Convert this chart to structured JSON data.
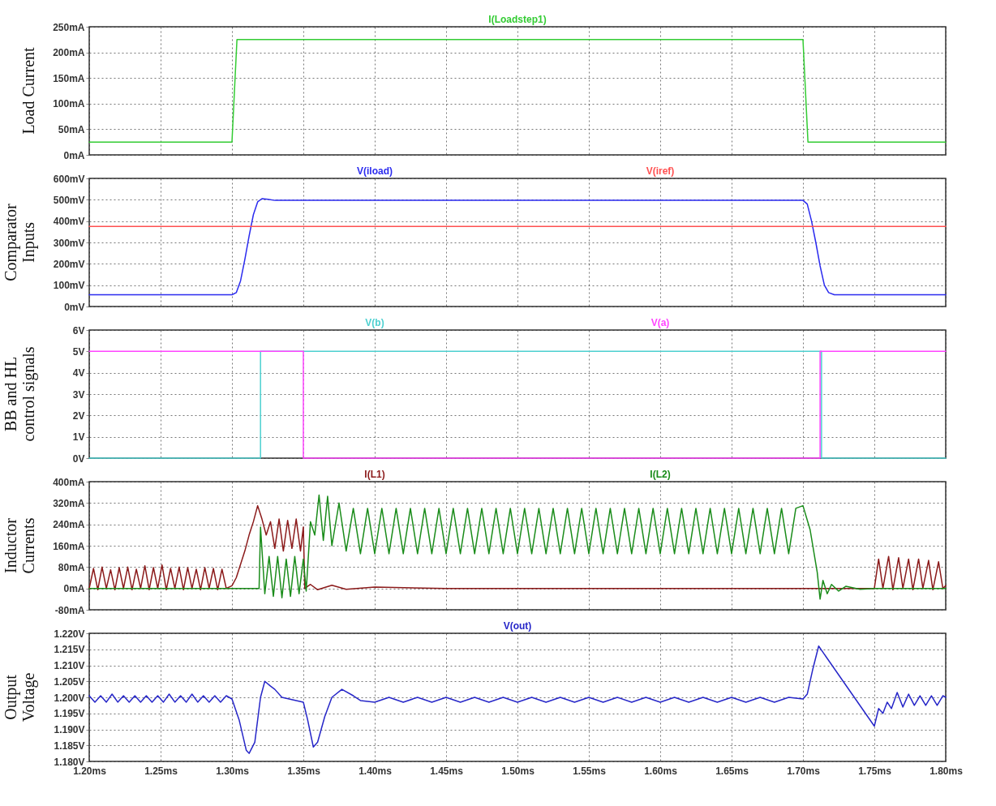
{
  "chart_data": [
    {
      "type": "line",
      "ylabel": "Load Current",
      "xlim": [
        1.2,
        1.8
      ],
      "xticks": [
        {
          "value": 1.2,
          "label": null
        },
        {
          "value": 1.25,
          "label": null
        },
        {
          "value": 1.3,
          "label": null
        },
        {
          "value": 1.35,
          "label": null
        },
        {
          "value": 1.4,
          "label": null
        },
        {
          "value": 1.45,
          "label": null
        },
        {
          "value": 1.5,
          "label": null
        },
        {
          "value": 1.55,
          "label": null
        },
        {
          "value": 1.6,
          "label": null
        },
        {
          "value": 1.65,
          "label": null
        },
        {
          "value": 1.7,
          "label": null
        },
        {
          "value": 1.75,
          "label": null
        },
        {
          "value": 1.8,
          "label": null
        }
      ],
      "ylim": [
        0,
        250
      ],
      "yticks": [
        {
          "value": 0,
          "label": "0mA"
        },
        {
          "value": 50,
          "label": "50mA"
        },
        {
          "value": 100,
          "label": "100mA"
        },
        {
          "value": 150,
          "label": "150mA"
        },
        {
          "value": 200,
          "label": "200mA"
        },
        {
          "value": 250,
          "label": "250mA"
        }
      ],
      "grid": true,
      "tick_labels": "y",
      "series": [
        {
          "name": "I(Loadstep1)",
          "color": "#33cc33",
          "x": [
            1.2,
            1.3,
            1.3035,
            1.7,
            1.7035,
            1.8
          ],
          "values": [
            25,
            25,
            225,
            225,
            25,
            25
          ]
        }
      ]
    },
    {
      "type": "line",
      "ylabel": "Comparator\nInputs",
      "xlim": [
        1.2,
        1.8
      ],
      "xticks": [
        {
          "value": 1.2,
          "label": null
        },
        {
          "value": 1.25,
          "label": null
        },
        {
          "value": 1.3,
          "label": null
        },
        {
          "value": 1.35,
          "label": null
        },
        {
          "value": 1.4,
          "label": null
        },
        {
          "value": 1.45,
          "label": null
        },
        {
          "value": 1.5,
          "label": null
        },
        {
          "value": 1.55,
          "label": null
        },
        {
          "value": 1.6,
          "label": null
        },
        {
          "value": 1.65,
          "label": null
        },
        {
          "value": 1.7,
          "label": null
        },
        {
          "value": 1.75,
          "label": null
        },
        {
          "value": 1.8,
          "label": null
        }
      ],
      "ylim": [
        0,
        600
      ],
      "yticks": [
        {
          "value": 0,
          "label": "0mV"
        },
        {
          "value": 100,
          "label": "100mV"
        },
        {
          "value": 200,
          "label": "200mV"
        },
        {
          "value": 300,
          "label": "300mV"
        },
        {
          "value": 400,
          "label": "400mV"
        },
        {
          "value": 500,
          "label": "500mV"
        },
        {
          "value": 600,
          "label": "600mV"
        }
      ],
      "grid": true,
      "tick_labels": "y",
      "series": [
        {
          "name": "V(iload)",
          "color": "#2b2bef",
          "x": [
            1.2,
            1.3,
            1.303,
            1.306,
            1.309,
            1.312,
            1.315,
            1.318,
            1.321,
            1.325,
            1.33,
            1.7,
            1.703,
            1.706,
            1.709,
            1.712,
            1.715,
            1.718,
            1.722,
            1.8
          ],
          "values": [
            55,
            55,
            65,
            120,
            220,
            330,
            430,
            490,
            505,
            502,
            497,
            497,
            480,
            400,
            300,
            190,
            100,
            65,
            55,
            55
          ]
        },
        {
          "name": "V(iref)",
          "color": "#ff5050",
          "x": [
            1.2,
            1.8
          ],
          "values": [
            375,
            375
          ]
        }
      ]
    },
    {
      "type": "line",
      "ylabel": "BB and HL\ncontrol signals",
      "xlim": [
        1.2,
        1.8
      ],
      "xticks": [
        {
          "value": 1.2,
          "label": null
        },
        {
          "value": 1.25,
          "label": null
        },
        {
          "value": 1.3,
          "label": null
        },
        {
          "value": 1.35,
          "label": null
        },
        {
          "value": 1.4,
          "label": null
        },
        {
          "value": 1.45,
          "label": null
        },
        {
          "value": 1.5,
          "label": null
        },
        {
          "value": 1.55,
          "label": null
        },
        {
          "value": 1.6,
          "label": null
        },
        {
          "value": 1.65,
          "label": null
        },
        {
          "value": 1.7,
          "label": null
        },
        {
          "value": 1.75,
          "label": null
        },
        {
          "value": 1.8,
          "label": null
        }
      ],
      "ylim": [
        0,
        6
      ],
      "yticks": [
        {
          "value": 0,
          "label": "0V"
        },
        {
          "value": 1,
          "label": "1V"
        },
        {
          "value": 2,
          "label": "2V"
        },
        {
          "value": 3,
          "label": "3V"
        },
        {
          "value": 4,
          "label": "4V"
        },
        {
          "value": 5,
          "label": "5V"
        },
        {
          "value": 6,
          "label": "6V"
        }
      ],
      "grid": true,
      "tick_labels": "y",
      "series": [
        {
          "name": "V(b)",
          "color": "#4dd0d0",
          "x": [
            1.2,
            1.32,
            1.32,
            1.713,
            1.713,
            1.8
          ],
          "values": [
            0,
            0,
            5,
            5,
            0,
            0
          ]
        },
        {
          "name": "V(a)",
          "color": "#ff44ff",
          "x": [
            1.2,
            1.35,
            1.35,
            1.712,
            1.712,
            1.8
          ],
          "values": [
            5,
            5,
            0,
            0,
            5,
            5
          ]
        }
      ]
    },
    {
      "type": "line",
      "ylabel": "Inductor\nCurrents",
      "xlim": [
        1.2,
        1.8
      ],
      "xticks": [
        {
          "value": 1.2,
          "label": null
        },
        {
          "value": 1.25,
          "label": null
        },
        {
          "value": 1.3,
          "label": null
        },
        {
          "value": 1.35,
          "label": null
        },
        {
          "value": 1.4,
          "label": null
        },
        {
          "value": 1.45,
          "label": null
        },
        {
          "value": 1.5,
          "label": null
        },
        {
          "value": 1.55,
          "label": null
        },
        {
          "value": 1.6,
          "label": null
        },
        {
          "value": 1.65,
          "label": null
        },
        {
          "value": 1.7,
          "label": null
        },
        {
          "value": 1.75,
          "label": null
        },
        {
          "value": 1.8,
          "label": null
        }
      ],
      "ylim": [
        -80,
        400
      ],
      "yticks": [
        {
          "value": -80,
          "label": "-80mA"
        },
        {
          "value": 0,
          "label": "0mA"
        },
        {
          "value": 80,
          "label": "80mA"
        },
        {
          "value": 160,
          "label": "160mA"
        },
        {
          "value": 240,
          "label": "240mA"
        },
        {
          "value": 320,
          "label": "320mA"
        },
        {
          "value": 400,
          "label": "400mA"
        }
      ],
      "grid": true,
      "tick_labels": "y",
      "series": [
        {
          "name": "I(L1)",
          "color": "#8b1a1a",
          "x": [
            1.2,
            1.203,
            1.206,
            1.209,
            1.212,
            1.215,
            1.218,
            1.221,
            1.224,
            1.227,
            1.23,
            1.233,
            1.236,
            1.239,
            1.242,
            1.245,
            1.248,
            1.251,
            1.254,
            1.257,
            1.26,
            1.263,
            1.266,
            1.269,
            1.272,
            1.275,
            1.278,
            1.281,
            1.284,
            1.287,
            1.29,
            1.293,
            1.296,
            1.3,
            1.303,
            1.306,
            1.309,
            1.312,
            1.315,
            1.318,
            1.321,
            1.324,
            1.327,
            1.33,
            1.333,
            1.336,
            1.339,
            1.342,
            1.345,
            1.348,
            1.35,
            1.351,
            1.355,
            1.36,
            1.37,
            1.38,
            1.4,
            1.45,
            1.75,
            1.753,
            1.756,
            1.76,
            1.763,
            1.767,
            1.77,
            1.774,
            1.777,
            1.781,
            1.784,
            1.788,
            1.791,
            1.795,
            1.798,
            1.8
          ],
          "values": [
            0,
            75,
            -5,
            80,
            0,
            70,
            -5,
            78,
            0,
            80,
            -5,
            72,
            0,
            85,
            -5,
            78,
            0,
            88,
            -5,
            75,
            0,
            80,
            -5,
            78,
            0,
            72,
            -5,
            78,
            0,
            75,
            -5,
            72,
            0,
            10,
            40,
            90,
            140,
            200,
            250,
            310,
            260,
            200,
            250,
            150,
            260,
            140,
            255,
            150,
            260,
            140,
            230,
            0,
            15,
            -5,
            12,
            -3,
            5,
            0,
            0,
            110,
            0,
            120,
            -5,
            115,
            0,
            110,
            -5,
            110,
            0,
            105,
            -5,
            100,
            0,
            10
          ]
        },
        {
          "name": "I(L2)",
          "color": "#1a8c1a",
          "x": [
            1.2,
            1.319,
            1.32,
            1.323,
            1.326,
            1.329,
            1.332,
            1.335,
            1.338,
            1.341,
            1.344,
            1.347,
            1.35,
            1.352,
            1.355,
            1.358,
            1.361,
            1.364,
            1.367,
            1.37,
            1.375,
            1.38,
            1.385,
            1.39,
            1.395,
            1.4,
            1.405,
            1.41,
            1.415,
            1.42,
            1.425,
            1.43,
            1.435,
            1.44,
            1.445,
            1.45,
            1.455,
            1.46,
            1.465,
            1.47,
            1.475,
            1.48,
            1.485,
            1.49,
            1.495,
            1.5,
            1.505,
            1.51,
            1.515,
            1.52,
            1.525,
            1.53,
            1.535,
            1.54,
            1.545,
            1.55,
            1.555,
            1.56,
            1.565,
            1.57,
            1.575,
            1.58,
            1.585,
            1.59,
            1.595,
            1.6,
            1.605,
            1.61,
            1.615,
            1.62,
            1.625,
            1.63,
            1.635,
            1.64,
            1.645,
            1.65,
            1.655,
            1.66,
            1.665,
            1.67,
            1.675,
            1.68,
            1.685,
            1.69,
            1.695,
            1.7,
            1.705,
            1.71,
            1.712,
            1.714,
            1.717,
            1.72,
            1.725,
            1.73,
            1.74,
            1.75,
            1.8
          ],
          "values": [
            0,
            0,
            230,
            -20,
            120,
            -30,
            120,
            -35,
            110,
            -30,
            120,
            -20,
            110,
            -10,
            250,
            200,
            350,
            180,
            345,
            160,
            320,
            140,
            300,
            130,
            300,
            130,
            300,
            130,
            300,
            130,
            300,
            130,
            300,
            130,
            300,
            130,
            300,
            130,
            300,
            130,
            300,
            130,
            300,
            130,
            300,
            130,
            300,
            130,
            300,
            130,
            300,
            130,
            300,
            130,
            300,
            130,
            300,
            130,
            300,
            130,
            300,
            130,
            300,
            130,
            300,
            130,
            300,
            130,
            300,
            130,
            300,
            130,
            300,
            130,
            300,
            130,
            300,
            130,
            300,
            130,
            300,
            130,
            300,
            130,
            300,
            310,
            220,
            60,
            -40,
            30,
            -20,
            15,
            -10,
            8,
            -3,
            0,
            0
          ]
        }
      ]
    },
    {
      "type": "line",
      "ylabel": "Output\nVoltage",
      "xlim": [
        1.2,
        1.8
      ],
      "xticks": [
        {
          "value": 1.2,
          "label": "1.20ms"
        },
        {
          "value": 1.25,
          "label": "1.25ms"
        },
        {
          "value": 1.3,
          "label": "1.30ms"
        },
        {
          "value": 1.35,
          "label": "1.35ms"
        },
        {
          "value": 1.4,
          "label": "1.40ms"
        },
        {
          "value": 1.45,
          "label": "1.45ms"
        },
        {
          "value": 1.5,
          "label": "1.50ms"
        },
        {
          "value": 1.55,
          "label": "1.55ms"
        },
        {
          "value": 1.6,
          "label": "1.60ms"
        },
        {
          "value": 1.65,
          "label": "1.65ms"
        },
        {
          "value": 1.7,
          "label": "1.70ms"
        },
        {
          "value": 1.75,
          "label": "1.75ms"
        },
        {
          "value": 1.8,
          "label": "1.80ms"
        }
      ],
      "ylim": [
        1.18,
        1.22
      ],
      "yticks": [
        {
          "value": 1.18,
          "label": "1.180V"
        },
        {
          "value": 1.185,
          "label": "1.185V"
        },
        {
          "value": 1.19,
          "label": "1.190V"
        },
        {
          "value": 1.195,
          "label": "1.195V"
        },
        {
          "value": 1.2,
          "label": "1.200V"
        },
        {
          "value": 1.205,
          "label": "1.205V"
        },
        {
          "value": 1.21,
          "label": "1.210V"
        },
        {
          "value": 1.215,
          "label": "1.215V"
        },
        {
          "value": 1.22,
          "label": "1.220V"
        }
      ],
      "grid": true,
      "series": [
        {
          "name": "V(out)",
          "color": "#2626c8",
          "x": [
            1.2,
            1.204,
            1.208,
            1.212,
            1.216,
            1.22,
            1.224,
            1.228,
            1.232,
            1.236,
            1.24,
            1.244,
            1.248,
            1.252,
            1.256,
            1.26,
            1.264,
            1.268,
            1.272,
            1.276,
            1.28,
            1.284,
            1.288,
            1.292,
            1.296,
            1.3,
            1.305,
            1.31,
            1.312,
            1.316,
            1.32,
            1.323,
            1.327,
            1.33,
            1.335,
            1.34,
            1.345,
            1.35,
            1.353,
            1.357,
            1.36,
            1.365,
            1.37,
            1.377,
            1.385,
            1.39,
            1.4,
            1.41,
            1.42,
            1.43,
            1.44,
            1.45,
            1.46,
            1.47,
            1.48,
            1.49,
            1.5,
            1.51,
            1.52,
            1.53,
            1.54,
            1.55,
            1.56,
            1.57,
            1.58,
            1.59,
            1.6,
            1.61,
            1.62,
            1.63,
            1.64,
            1.65,
            1.66,
            1.67,
            1.68,
            1.69,
            1.7,
            1.703,
            1.707,
            1.711,
            1.75,
            1.753,
            1.756,
            1.759,
            1.762,
            1.766,
            1.77,
            1.774,
            1.778,
            1.782,
            1.786,
            1.79,
            1.794,
            1.798,
            1.8
          ],
          "values": [
            1.2005,
            1.1985,
            1.2005,
            1.1985,
            1.201,
            1.1985,
            1.2005,
            1.1985,
            1.2005,
            1.1985,
            1.2005,
            1.1985,
            1.2005,
            1.1985,
            1.201,
            1.1985,
            1.2005,
            1.1985,
            1.201,
            1.1985,
            1.2005,
            1.1985,
            1.2005,
            1.1985,
            1.2005,
            1.1995,
            1.193,
            1.1835,
            1.1825,
            1.186,
            1.2,
            1.205,
            1.2035,
            1.2025,
            1.2,
            1.1995,
            1.199,
            1.1985,
            1.193,
            1.1845,
            1.186,
            1.194,
            1.2,
            1.2025,
            1.2005,
            1.199,
            1.1985,
            1.2,
            1.1985,
            1.2,
            1.1985,
            1.2,
            1.1985,
            1.2,
            1.1985,
            1.2,
            1.1985,
            1.2,
            1.1985,
            1.2,
            1.1985,
            1.2,
            1.1985,
            1.2,
            1.1985,
            1.2,
            1.1985,
            1.2,
            1.1985,
            1.2,
            1.1985,
            1.2,
            1.1985,
            1.2,
            1.1985,
            1.2,
            1.1995,
            1.201,
            1.209,
            1.216,
            1.191,
            1.1965,
            1.195,
            1.1985,
            1.1965,
            1.2015,
            1.197,
            1.201,
            1.1975,
            1.2005,
            1.1975,
            1.2005,
            1.1975,
            1.2005,
            1.2
          ]
        }
      ]
    }
  ]
}
